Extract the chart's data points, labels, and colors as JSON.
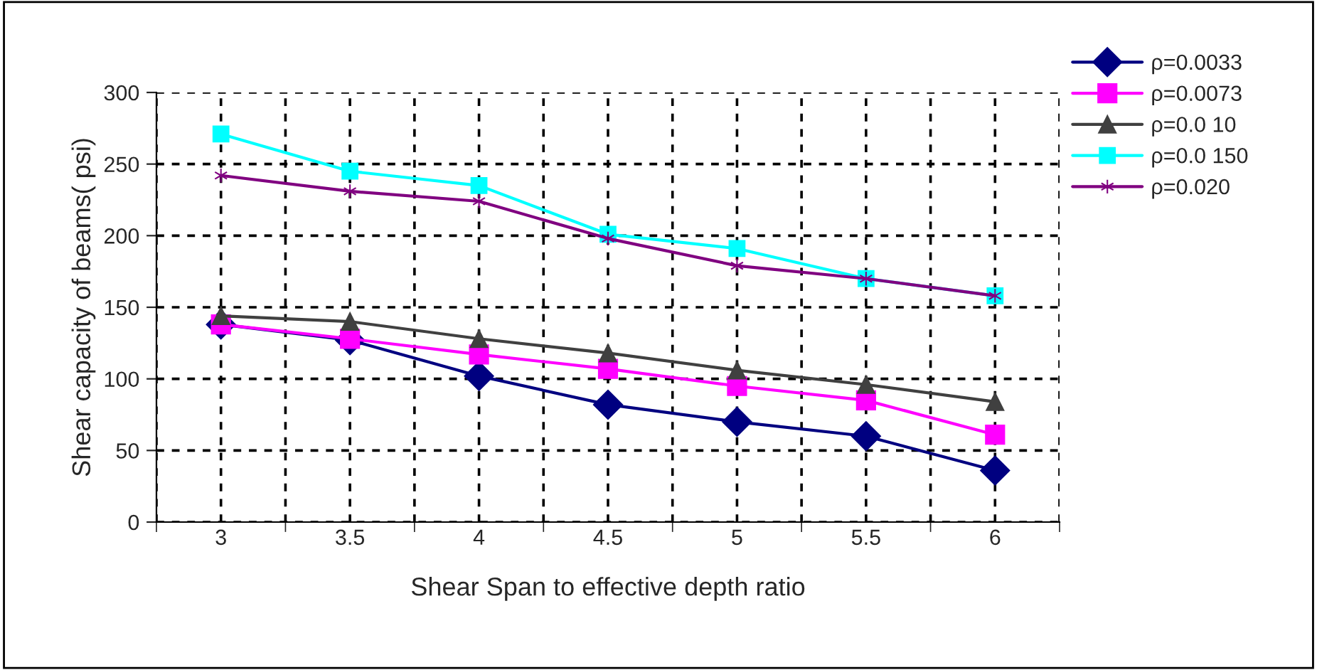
{
  "chart_data": {
    "type": "line",
    "xlabel": "Shear Span to effective depth ratio",
    "ylabel": "Shear capacity of beams( psi)",
    "categories": [
      "3",
      "3.5",
      "4",
      "4.5",
      "5",
      "5.5",
      "6"
    ],
    "series": [
      {
        "name": "ρ=0.0033",
        "color": "#000080",
        "marker": "diamond",
        "values": [
          138,
          127,
          102,
          82,
          70,
          60,
          36
        ]
      },
      {
        "name": "ρ=0.0073",
        "color": "#ff00ff",
        "marker": "square",
        "values": [
          138,
          128,
          117,
          107,
          95,
          85,
          61
        ]
      },
      {
        "name": "ρ=0.0 10",
        "color": "#404040",
        "marker": "triangle",
        "values": [
          144,
          140,
          128,
          118,
          106,
          96,
          84
        ]
      },
      {
        "name": "ρ=0.0 150",
        "color": "#00ffff",
        "marker": "square",
        "values": [
          271,
          245,
          235,
          201,
          191,
          170,
          158
        ]
      },
      {
        "name": "ρ=0.020",
        "color": "#800080",
        "marker": "cross",
        "values": [
          242,
          231,
          224,
          198,
          179,
          170,
          158
        ]
      }
    ],
    "ylim": [
      0,
      300
    ],
    "yticks": [
      0,
      50,
      100,
      150,
      200,
      250,
      300
    ],
    "grid": true,
    "line_style": "solid",
    "legend": "top right"
  }
}
